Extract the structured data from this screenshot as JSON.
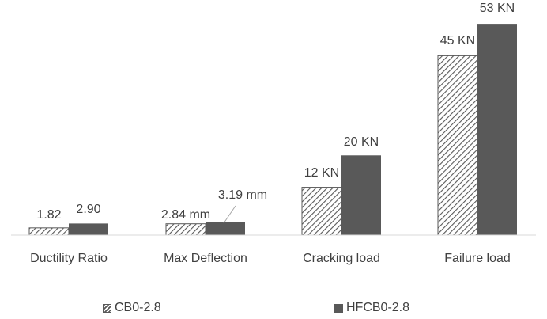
{
  "chart_data": {
    "type": "bar",
    "categories": [
      "Ductility Ratio",
      "Max Deflection",
      "Cracking load",
      "Failure load"
    ],
    "series": [
      {
        "name": "CB0-2.8",
        "values": [
          1.82,
          2.84,
          12,
          45
        ],
        "labels": [
          "1.82",
          "2.84 mm",
          "12 KN",
          "45 KN"
        ],
        "pattern": "hatched",
        "color": "#595959"
      },
      {
        "name": "HFCB0-2.8",
        "values": [
          2.9,
          3.19,
          20,
          53
        ],
        "labels": [
          "2.90",
          "3.19 mm",
          "20 KN",
          "53 KN"
        ],
        "pattern": "solid",
        "color": "#595959"
      }
    ],
    "ylim": [
      0,
      56
    ],
    "grid": false,
    "legend_position": "bottom",
    "title": "",
    "xlabel": "",
    "ylabel": ""
  }
}
